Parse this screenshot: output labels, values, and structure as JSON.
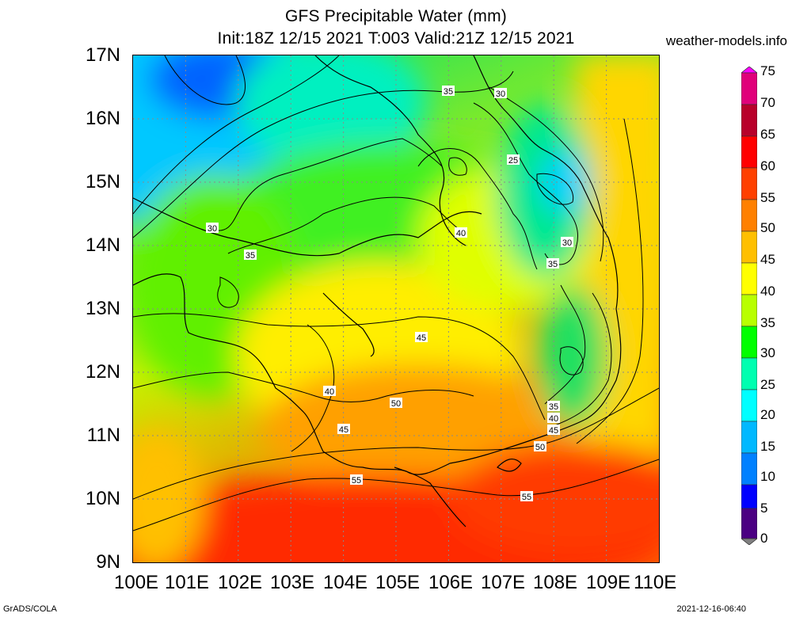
{
  "title": {
    "line1": "GFS Precipitable Water (mm)",
    "line2": "Init:18Z 12/15 2021 T:003 Valid:21Z 12/15 2021"
  },
  "site": "weather-models.info",
  "footer": {
    "left": "GrADS/COLA",
    "right": "2021-12-16-06:40"
  },
  "axes": {
    "lat_labels": [
      "17N",
      "16N",
      "15N",
      "14N",
      "13N",
      "12N",
      "11N",
      "10N",
      "9N"
    ],
    "lon_labels": [
      "100E",
      "101E",
      "102E",
      "103E",
      "104E",
      "105E",
      "106E",
      "107E",
      "108E",
      "109E",
      "110E"
    ]
  },
  "colorbar": {
    "labels": [
      "75",
      "70",
      "65",
      "60",
      "55",
      "50",
      "45",
      "40",
      "35",
      "30",
      "25",
      "20",
      "15",
      "10",
      "5",
      "0"
    ],
    "colors": [
      "#ff00ff",
      "#e0007a",
      "#b8002a",
      "#ff0000",
      "#ff4000",
      "#ff8000",
      "#ffbf00",
      "#ffff00",
      "#b8ff00",
      "#00ff00",
      "#00ffb0",
      "#00ffff",
      "#00b8ff",
      "#0080ff",
      "#0000ff",
      "#4b0082",
      "#808080"
    ]
  },
  "contour_labels": [
    "35",
    "30",
    "25",
    "30",
    "35",
    "40",
    "30",
    "35",
    "45",
    "40",
    "45",
    "50",
    "35",
    "40",
    "45",
    "50",
    "55",
    "55"
  ]
}
